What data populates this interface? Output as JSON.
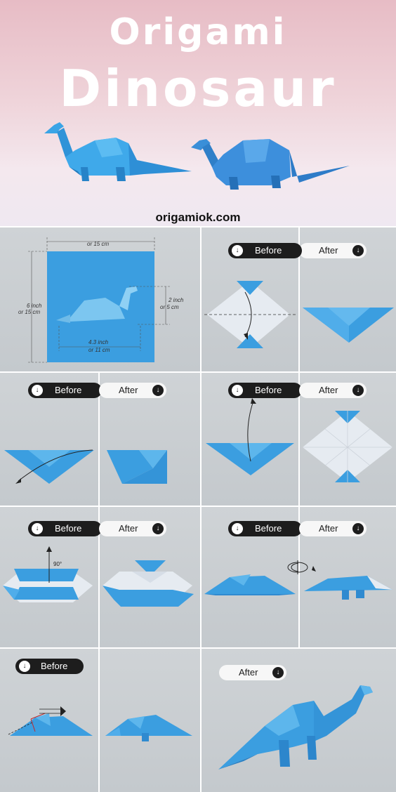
{
  "header": {
    "title_line1": "Origami",
    "title_line2": "Dinosaur",
    "site": "origamiok.com"
  },
  "measurements": {
    "top_width": "or 15 cm",
    "side_line1": "6 inch",
    "side_line2": "or 15 cm",
    "height_line1": "2 inch",
    "height_line2": "or 5 cm",
    "length_line1": "4.3 inch",
    "length_line2": "or 11 cm"
  },
  "steps": {
    "before_label": "Before",
    "after_label": "After",
    "arrow_glyph": "↓",
    "angle_label": "90°"
  },
  "colors": {
    "paper_blue": "#3b9ee0",
    "paper_light": "#5cb8ee",
    "paper_white": "#e9edf2",
    "pill_dark": "#1d1d1d",
    "pill_light": "#f7f7f7"
  }
}
